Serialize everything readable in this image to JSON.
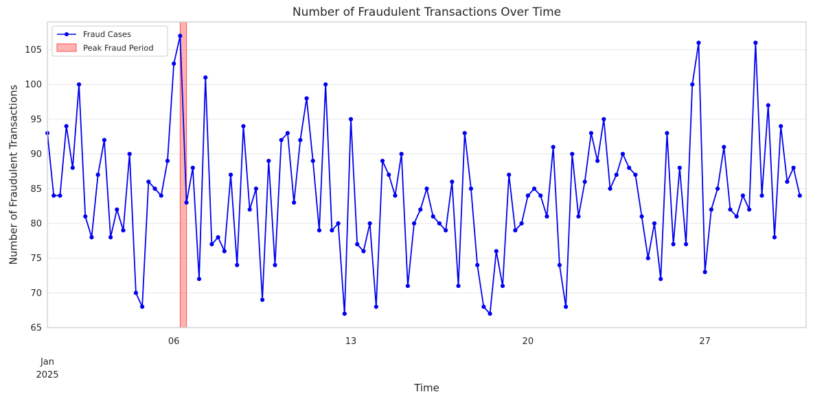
{
  "chart_data": {
    "type": "line",
    "title": "Number of Fraudulent Transactions Over Time",
    "xlabel": "Time",
    "ylabel": "Number of Fraudulent Transactions",
    "ylim": [
      65,
      109
    ],
    "yticks": [
      65,
      70,
      75,
      80,
      85,
      90,
      95,
      100,
      105
    ],
    "x_start": "2025-01-01 00:00",
    "x_end": "2025-01-31 00:00",
    "x_sampling": "every 6 hours",
    "xticks": [
      {
        "date": "2025-01-01",
        "label": "Jan",
        "sublabel": "2025"
      },
      {
        "date": "2025-01-06",
        "label": "06"
      },
      {
        "date": "2025-01-13",
        "label": "13"
      },
      {
        "date": "2025-01-20",
        "label": "20"
      },
      {
        "date": "2025-01-27",
        "label": "27"
      }
    ],
    "grid": "horizontal",
    "legend_position": "top-left",
    "series": [
      {
        "name": "Fraud Cases",
        "color": "#0000ee",
        "marker": "circle",
        "values": [
          93,
          84,
          84,
          94,
          88,
          100,
          81,
          78,
          87,
          92,
          78,
          82,
          79,
          90,
          70,
          68,
          86,
          85,
          84,
          89,
          103,
          107,
          83,
          88,
          72,
          101,
          77,
          78,
          76,
          87,
          74,
          94,
          82,
          85,
          69,
          89,
          74,
          92,
          93,
          83,
          92,
          98,
          89,
          79,
          100,
          79,
          80,
          67,
          95,
          77,
          76,
          80,
          68,
          89,
          87,
          84,
          90,
          71,
          80,
          82,
          85,
          81,
          80,
          79,
          86,
          71,
          93,
          85,
          74,
          68,
          67,
          76,
          71,
          87,
          79,
          80,
          84,
          85,
          84,
          81,
          91,
          74,
          68,
          90,
          81,
          86,
          93,
          89,
          95,
          85,
          87,
          90,
          88,
          87,
          81,
          75,
          80,
          72,
          93,
          77,
          88,
          77,
          100,
          106,
          73,
          82,
          85,
          91,
          82,
          81,
          84,
          82,
          106,
          84,
          97,
          78,
          94,
          86,
          88,
          84
        ]
      }
    ],
    "highlight": {
      "name": "Peak Fraud Period",
      "color": "#ff7f7f",
      "start": "2025-01-06 06:00",
      "end": "2025-01-06 12:00"
    }
  }
}
